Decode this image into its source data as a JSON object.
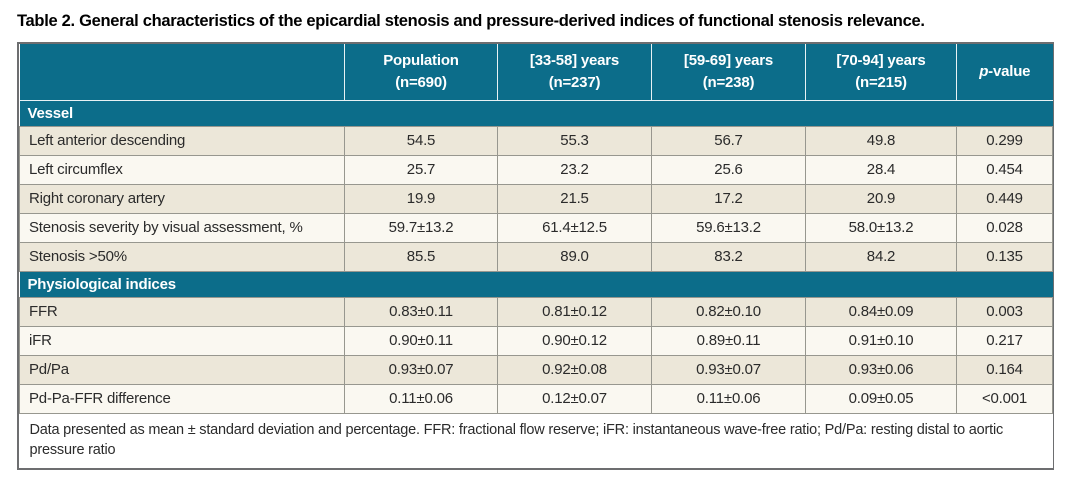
{
  "title": "Table 2. General characteristics of the epicardial stenosis and pressure-derived indices of functional stenosis relevance.",
  "colors": {
    "header_teal": "#0c6d8a",
    "row_beige": "#ece7d9",
    "row_light": "#faf8f1",
    "outer_border": "#6d6e70",
    "grid_line": "#97978f"
  },
  "header": {
    "corner": "",
    "columns": [
      {
        "line1": "Population",
        "line2": "(n=690)"
      },
      {
        "line1": "[33-58] years",
        "line2": "(n=237)"
      },
      {
        "line1": "[59-69] years",
        "line2": "(n=238)"
      },
      {
        "line1": "[70-94] years",
        "line2": "(n=215)"
      }
    ],
    "pvalue": {
      "italic": "p",
      "rest": "-value"
    }
  },
  "sections": [
    {
      "label": "Vessel",
      "rows": [
        {
          "label": "Left anterior descending",
          "values": [
            "54.5",
            "55.3",
            "56.7",
            "49.8",
            "0.299"
          ]
        },
        {
          "label": "Left circumflex",
          "values": [
            "25.7",
            "23.2",
            "25.6",
            "28.4",
            "0.454"
          ]
        },
        {
          "label": "Right coronary artery",
          "values": [
            "19.9",
            "21.5",
            "17.2",
            "20.9",
            "0.449"
          ]
        },
        {
          "label": "Stenosis severity by visual assessment, %",
          "values": [
            "59.7±13.2",
            "61.4±12.5",
            "59.6±13.2",
            "58.0±13.2",
            "0.028"
          ]
        },
        {
          "label": "Stenosis >50%",
          "values": [
            "85.5",
            "89.0",
            "83.2",
            "84.2",
            "0.135"
          ]
        }
      ]
    },
    {
      "label": "Physiological indices",
      "rows": [
        {
          "label": "FFR",
          "values": [
            "0.83±0.11",
            "0.81±0.12",
            "0.82±0.10",
            "0.84±0.09",
            "0.003"
          ]
        },
        {
          "label": "iFR",
          "values": [
            "0.90±0.11",
            "0.90±0.12",
            "0.89±0.11",
            "0.91±0.10",
            "0.217"
          ]
        },
        {
          "label": "Pd/Pa",
          "values": [
            "0.93±0.07",
            "0.92±0.08",
            "0.93±0.07",
            "0.93±0.06",
            "0.164"
          ]
        },
        {
          "label": "Pd-Pa-FFR difference",
          "values": [
            "0.11±0.06",
            "0.12±0.07",
            "0.11±0.06",
            "0.09±0.05",
            "<0.001"
          ]
        }
      ]
    }
  ],
  "footnote": "Data presented as mean ± standard deviation and percentage. FFR: fractional flow reserve; iFR: instantaneous wave-free ratio; Pd/Pa: resting distal to aortic pressure ratio"
}
